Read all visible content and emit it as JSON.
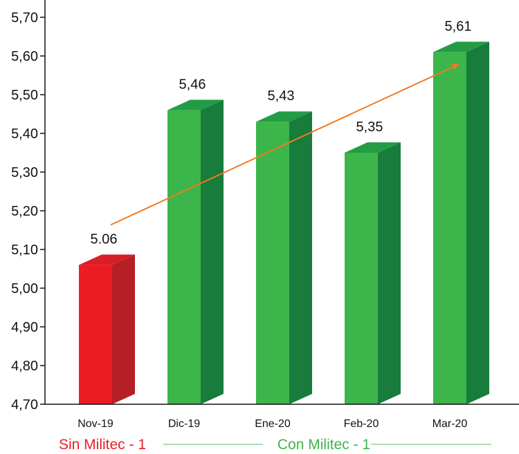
{
  "chart_data": {
    "type": "bar",
    "categories": [
      "Nov-19",
      "Dic-19",
      "Ene-20",
      "Feb-20",
      "Mar-20"
    ],
    "values": [
      5.06,
      5.46,
      5.43,
      5.35,
      5.61
    ],
    "data_labels": [
      "5.06",
      "5,46",
      "5,43",
      "5,35",
      "5,61"
    ],
    "y_ticks": [
      4.7,
      4.8,
      4.9,
      5.0,
      5.1,
      5.2,
      5.3,
      5.4,
      5.5,
      5.6,
      5.7
    ],
    "y_tick_labels": [
      "4,70",
      "4,80",
      "4,90",
      "5,00",
      "5,10",
      "5,20",
      "5,30",
      "5,40",
      "5,50",
      "5,60",
      "5,70"
    ],
    "ylim": [
      4.7,
      5.7
    ],
    "title": "",
    "xlabel": "",
    "ylabel": "",
    "grid": false,
    "style": "3d-bar",
    "bar_colors": [
      "#ed1c24",
      "#3cb54a",
      "#3cb54a",
      "#3cb54a",
      "#3cb54a"
    ],
    "bar_side_colors": [
      "#b71f26",
      "#177c3c",
      "#177c3c",
      "#177c3c",
      "#177c3c"
    ],
    "bar_top_colors": [
      "#d81e29",
      "#239c45",
      "#239c45",
      "#239c45",
      "#239c45"
    ],
    "trend_arrow": {
      "from_category": "Nov-19",
      "to_category": "Mar-20",
      "color": "#f07a22"
    },
    "groups": [
      {
        "label": "Sin Militec - 1",
        "categories": [
          "Nov-19"
        ],
        "color": "#ed1c24"
      },
      {
        "label": "Con Militec - 1",
        "categories": [
          "Dic-19",
          "Ene-20",
          "Feb-20",
          "Mar-20"
        ],
        "color": "#3cb54a",
        "line_color": "#8fd49a"
      }
    ],
    "axis_color": "#111111"
  }
}
